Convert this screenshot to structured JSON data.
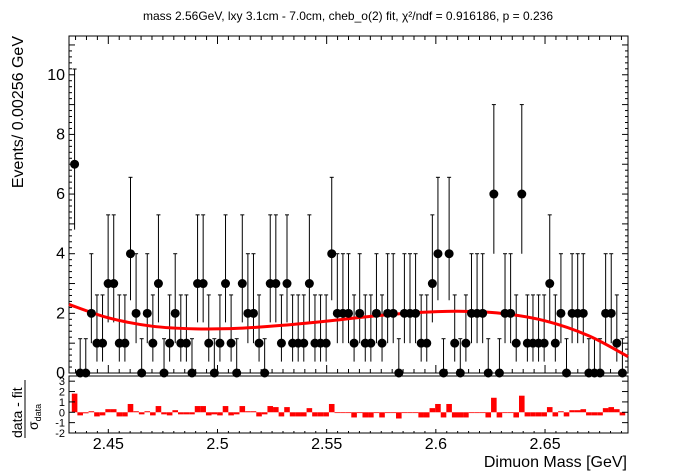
{
  "chart_data": [
    {
      "type": "scatter",
      "title": "mass 2.56GeV, lxy 3.1cm - 7.0cm, cheb_o(2) fit, χ²/ndf = 0.916186, p = 0.236",
      "ylabel": "Events/ 0.00256 GeV",
      "xlabel": "Dimuon Mass [GeV]",
      "xlim": [
        2.432,
        2.688
      ],
      "ylim": [
        0,
        11.3
      ],
      "x_ticks": [
        "2.45",
        "2.5",
        "2.55",
        "2.6",
        "2.65"
      ],
      "y_ticks": [
        "0",
        "2",
        "4",
        "6",
        "8",
        "10"
      ],
      "grid": false,
      "bin_width": 0.00256,
      "x_start": 2.43328,
      "series": [
        {
          "role": "data",
          "style": "black points with error bars",
          "values": [
            7,
            0,
            0,
            2,
            1,
            1,
            3,
            3,
            1,
            1,
            4,
            2,
            0,
            2,
            1,
            3,
            0,
            1,
            2,
            1,
            1,
            0,
            3,
            3,
            1,
            0,
            1,
            3,
            1,
            0,
            3,
            2,
            2,
            1,
            0,
            3,
            3,
            1,
            3,
            1,
            1,
            1,
            3,
            1,
            1,
            1,
            4,
            2,
            2,
            2,
            1,
            2,
            1,
            1,
            2,
            1,
            2,
            2,
            0,
            2,
            2,
            2,
            1,
            1,
            3,
            4,
            0,
            4,
            1,
            0,
            1,
            2,
            2,
            2,
            0,
            6,
            0,
            2,
            2,
            1,
            6,
            1,
            1,
            1,
            1,
            3,
            1,
            2,
            0,
            2,
            2,
            2,
            0,
            0,
            0,
            2,
            2,
            1,
            0
          ]
        },
        {
          "role": "fit",
          "style": "red line",
          "x": [
            2.432,
            2.45,
            2.47,
            2.49,
            2.51,
            2.53,
            2.55,
            2.57,
            2.59,
            2.61,
            2.63,
            2.65,
            2.67,
            2.688
          ],
          "values": [
            2.3,
            1.85,
            1.57,
            1.48,
            1.5,
            1.6,
            1.74,
            1.9,
            2.02,
            2.07,
            2.0,
            1.75,
            1.25,
            0.55
          ]
        }
      ]
    },
    {
      "type": "bar",
      "ylabel": "data - fit / σdata",
      "ylabel_numerator": "data - fit",
      "ylabel_denominator": "σ",
      "ylabel_subscript": "data",
      "ylim": [
        -2,
        3.5
      ],
      "y_ticks": [
        "-2",
        "-1",
        "0",
        "1",
        "2",
        "3"
      ],
      "color": "#ff0000",
      "series": [
        {
          "name": "",
          "values": [
            1.8,
            -0.3,
            -0.1,
            0.1,
            -0.4,
            -0.3,
            0.3,
            0.3,
            -0.4,
            -0.4,
            0.8,
            0.1,
            -0.2,
            0.1,
            -0.3,
            0.6,
            -0.2,
            -0.3,
            0.2,
            -0.2,
            -0.2,
            -0.2,
            0.6,
            0.6,
            -0.3,
            -0.2,
            -0.3,
            0.6,
            -0.3,
            -0.2,
            0.6,
            0.1,
            0.1,
            -0.4,
            -0.2,
            0.6,
            0.5,
            -0.4,
            0.5,
            -0.4,
            -0.4,
            -0.4,
            0.4,
            -0.4,
            -0.4,
            -0.4,
            0.8,
            0.0,
            0.0,
            0.0,
            -0.5,
            0.0,
            -0.5,
            -0.5,
            0.0,
            -0.5,
            0.0,
            0.0,
            -0.6,
            0.0,
            0.0,
            0.0,
            -0.5,
            -0.5,
            0.4,
            0.8,
            -0.5,
            0.8,
            -0.5,
            -0.5,
            -0.5,
            0.0,
            0.0,
            0.0,
            -0.5,
            1.4,
            -0.5,
            0.0,
            0.0,
            -0.5,
            1.6,
            -0.4,
            -0.4,
            -0.4,
            -0.4,
            0.5,
            -0.4,
            0.1,
            -0.4,
            0.2,
            0.2,
            0.3,
            -0.3,
            -0.3,
            -0.3,
            0.4,
            0.5,
            0.3,
            -0.3
          ]
        }
      ]
    }
  ]
}
